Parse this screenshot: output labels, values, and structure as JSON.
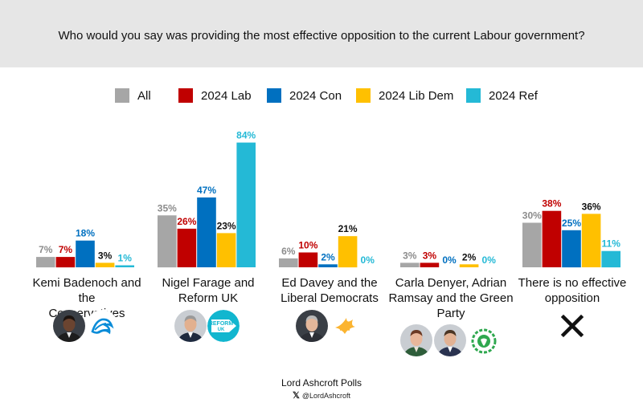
{
  "question": "Who would you say was providing the most effective opposition to the current Labour government?",
  "legend": [
    {
      "label": "All",
      "color": "#a6a6a6"
    },
    {
      "label": "2024 Lab",
      "color": "#c00000"
    },
    {
      "label": "2024 Con",
      "color": "#0070c0"
    },
    {
      "label": "2024 Lib Dem",
      "color": "#ffc000"
    },
    {
      "label": "2024 Ref",
      "color": "#24b9d6"
    }
  ],
  "chart_data": {
    "type": "bar",
    "categories": [
      "Kemi Badenoch and the Conservatives",
      "Nigel Farage and Reform UK",
      "Ed Davey and the Liberal Democrats",
      "Carla Denyer, Adrian Ramsay and the Green Party",
      "There is no effective opposition"
    ],
    "series": [
      {
        "name": "All",
        "color": "#a6a6a6",
        "label_color": "#8c8c8c",
        "values": [
          7,
          35,
          6,
          3,
          30
        ]
      },
      {
        "name": "2024 Lab",
        "color": "#c00000",
        "label_color": "#c00000",
        "values": [
          7,
          26,
          10,
          3,
          38
        ]
      },
      {
        "name": "2024 Con",
        "color": "#0070c0",
        "label_color": "#0070c0",
        "values": [
          18,
          47,
          2,
          0,
          25
        ]
      },
      {
        "name": "2024 Lib Dem",
        "color": "#ffc000",
        "label_color": "#111111",
        "values": [
          3,
          23,
          21,
          2,
          36
        ]
      },
      {
        "name": "2024 Ref",
        "color": "#24b9d6",
        "label_color": "#24b9d6",
        "values": [
          1,
          84,
          0,
          0,
          11
        ]
      }
    ],
    "value_labels": [
      [
        "7%",
        "7%",
        "18%",
        "3%",
        "1%"
      ],
      [
        "35%",
        "26%",
        "47%",
        "23%",
        "84%"
      ],
      [
        "6%",
        "10%",
        "2%",
        "21%",
        "0%"
      ],
      [
        "3%",
        "3%",
        "0%",
        "2%",
        "0%"
      ],
      [
        "30%",
        "38%",
        "25%",
        "36%",
        "11%"
      ]
    ],
    "ylim": [
      0,
      84
    ],
    "grid": false,
    "legend_position": "top"
  },
  "category_labels": [
    [
      "Kemi Badenoch and the",
      "Conservatives"
    ],
    [
      "Nigel Farage and",
      "Reform UK"
    ],
    [
      "Ed Davey and the",
      "Liberal Democrats"
    ],
    [
      "Carla Denyer, Adrian",
      "Ramsay and the Green",
      "Party"
    ],
    [
      "There is no effective",
      "opposition"
    ]
  ],
  "icons": [
    [
      "kemi-badenoch-photo-icon",
      "conservative-tree-logo-icon"
    ],
    [
      "nigel-farage-photo-icon",
      "reform-uk-logo-icon"
    ],
    [
      "ed-davey-photo-icon",
      "lib-dem-bird-logo-icon"
    ],
    [
      "carla-denyer-photo-icon",
      "adrian-ramsay-photo-icon",
      "green-party-logo-icon"
    ],
    [
      "cross-icon"
    ]
  ],
  "reform_logo_text": [
    "REFORM",
    "UK"
  ],
  "footer": {
    "title": "Lord Ashcroft Polls",
    "handle": "@LordAshcroft"
  }
}
